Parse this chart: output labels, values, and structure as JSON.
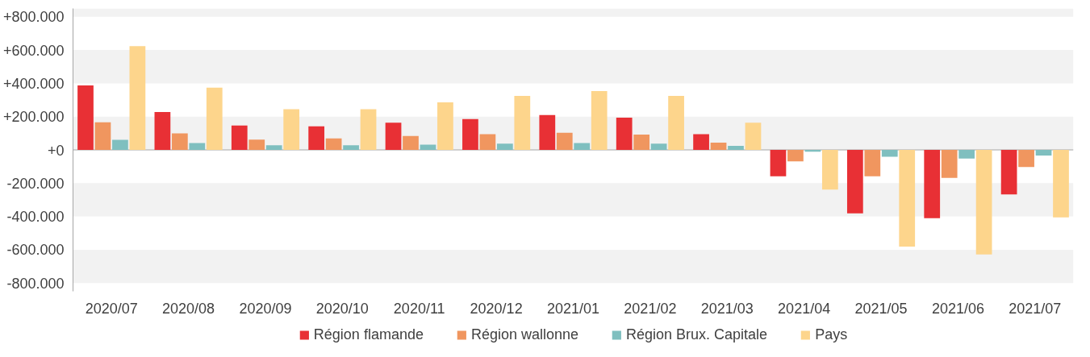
{
  "chart_data": {
    "type": "bar",
    "categories": [
      "2020/07",
      "2020/08",
      "2020/09",
      "2020/10",
      "2020/11",
      "2020/12",
      "2021/01",
      "2021/02",
      "2021/03",
      "2021/04",
      "2021/05",
      "2021/06",
      "2021/07"
    ],
    "series": [
      {
        "name": "Région flamande",
        "color": "#e83035",
        "values": [
          387000,
          228000,
          146000,
          142000,
          163000,
          185000,
          209000,
          194000,
          95000,
          -159000,
          -381000,
          -411000,
          -267000
        ]
      },
      {
        "name": "Région wallonne",
        "color": "#f0965f",
        "values": [
          166000,
          99000,
          62000,
          69000,
          84000,
          95000,
          103000,
          92000,
          43000,
          -69000,
          -159000,
          -168000,
          -103000
        ]
      },
      {
        "name": "Région Brux. Capitale",
        "color": "#7fbfbf",
        "values": [
          60000,
          41000,
          28000,
          28000,
          32000,
          37000,
          41000,
          37000,
          24000,
          -11000,
          -41000,
          -52000,
          -34000
        ]
      },
      {
        "name": "Pays",
        "color": "#fdd58c",
        "values": [
          624000,
          374000,
          245000,
          245000,
          286000,
          325000,
          353000,
          325000,
          163000,
          -239000,
          -581000,
          -628000,
          -406000
        ]
      }
    ],
    "ylim": [
      -850000,
      850000
    ],
    "yticks": [
      {
        "value": -800000,
        "label": "-800.000"
      },
      {
        "value": -600000,
        "label": "-600.000"
      },
      {
        "value": -400000,
        "label": "-400.000"
      },
      {
        "value": -200000,
        "label": "-200.000"
      },
      {
        "value": 0,
        "label": "+0"
      },
      {
        "value": 200000,
        "label": "+200.000"
      },
      {
        "value": 400000,
        "label": "+400.000"
      },
      {
        "value": 600000,
        "label": "+600.000"
      },
      {
        "value": 800000,
        "label": "+800.000"
      }
    ],
    "grid": "y",
    "legend": "bottom"
  }
}
